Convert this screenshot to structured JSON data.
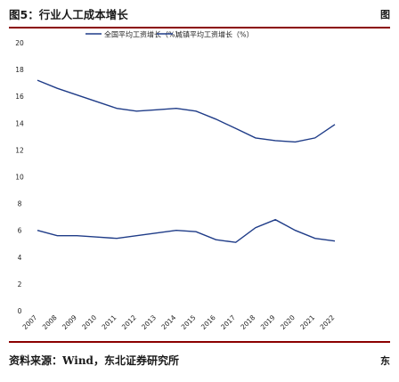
{
  "figure": {
    "title": "图5：行业人工成本增长",
    "right_fragment": "图",
    "source": "资料来源：Wind，东北证券研究所",
    "source_right_fragment": "东"
  },
  "chart_data": {
    "type": "line",
    "title": "",
    "xlabel": "",
    "ylabel": "",
    "ylim": [
      0,
      20
    ],
    "yticks": [
      0,
      2,
      4,
      6,
      8,
      10,
      12,
      14,
      16,
      18,
      20
    ],
    "grid": false,
    "legend_position": "top",
    "categories": [
      "2007",
      "2008",
      "2009",
      "2010",
      "2011",
      "2012",
      "2013",
      "2014",
      "2015",
      "2016",
      "2017",
      "2018",
      "2019",
      "2020",
      "2021",
      "2022"
    ],
    "series": [
      {
        "name": "全国平均工资增长（%）",
        "color": "#1f3c88",
        "values": [
          17.2,
          16.6,
          16.1,
          15.6,
          15.1,
          14.9,
          15.0,
          15.1,
          14.9,
          14.3,
          13.6,
          12.9,
          12.7,
          12.6,
          12.9,
          13.9
        ]
      },
      {
        "name": "城镇平均工资增长（%）",
        "color": "#1f3c88",
        "values": [
          6.0,
          5.6,
          5.6,
          5.5,
          5.4,
          5.6,
          5.8,
          6.0,
          5.9,
          5.3,
          5.1,
          6.2,
          6.8,
          6.0,
          5.4,
          5.2
        ]
      }
    ]
  }
}
